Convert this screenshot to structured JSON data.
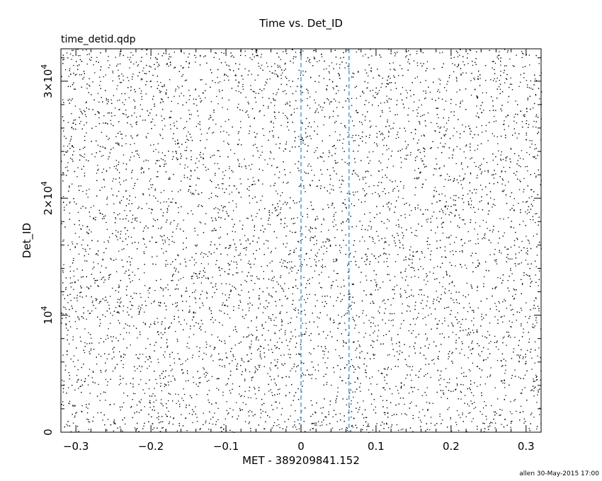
{
  "chart_data": {
    "type": "scatter",
    "title": "Time vs. Det_ID",
    "subtitle": "time_detid.qdp",
    "xlabel": "MET - 389209841.152",
    "ylabel": "Det_ID",
    "xlim": [
      -0.32,
      0.32
    ],
    "ylim": [
      0,
      32768
    ],
    "xticks": [
      -0.3,
      -0.2,
      -0.1,
      0,
      0.1,
      0.2,
      0.3
    ],
    "xtick_labels": [
      "−0.3",
      "−0.2",
      "−0.1",
      "0",
      "0.1",
      "0.2",
      "0.3"
    ],
    "yticks": [
      0,
      10000,
      20000,
      30000
    ],
    "ytick_labels": [
      {
        "mantissa": "0",
        "exp": ""
      },
      {
        "mantissa": "10",
        "exp": "4"
      },
      {
        "mantissa": "2×10",
        "exp": "4"
      },
      {
        "mantissa": "3×10",
        "exp": "4"
      }
    ],
    "reference_lines": [
      {
        "x": 0.0,
        "style": "dashed",
        "color": "#3a8fd0"
      },
      {
        "x": 0.064,
        "style": "dashed",
        "color": "#3a8fd0"
      }
    ],
    "series": [
      {
        "marker": "dot",
        "color": "#000000",
        "description": "dense uniform scatter of events filling full time range and detector range"
      }
    ],
    "grid": false
  },
  "footer": {
    "stamp": "allen 30-May-2015 17:00"
  }
}
